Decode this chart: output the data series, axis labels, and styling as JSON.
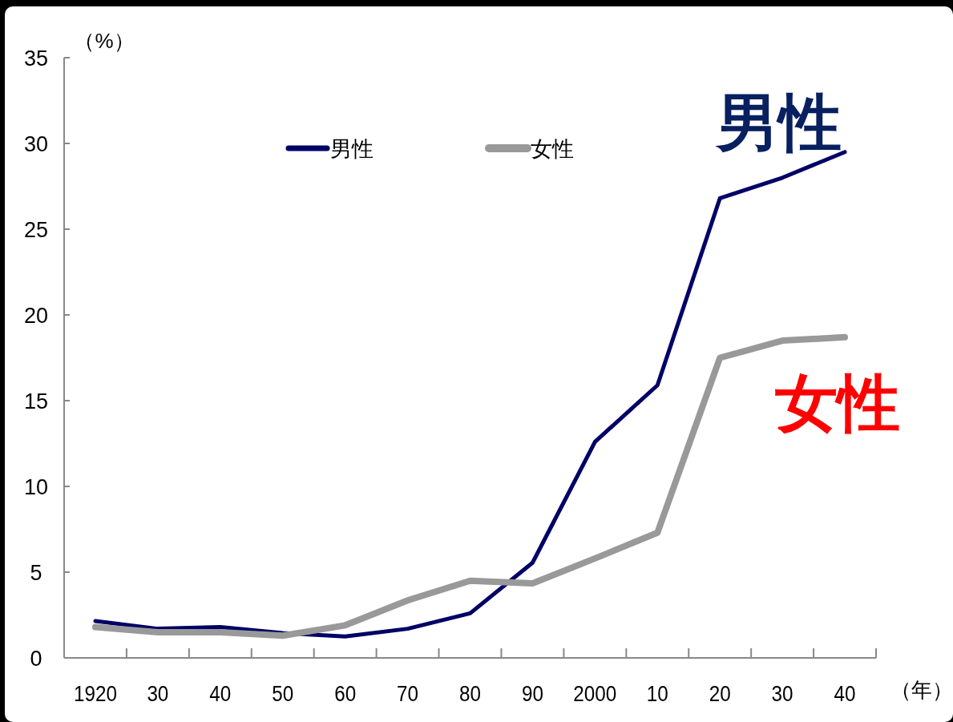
{
  "chart_data": {
    "type": "line",
    "ylabel": "（%）",
    "xlabel": "（年）",
    "categories": [
      "1920",
      "30",
      "40",
      "50",
      "60",
      "70",
      "80",
      "90",
      "2000",
      "10",
      "20",
      "30",
      "40"
    ],
    "ylim": [
      0,
      35
    ],
    "yticks": [
      0,
      5,
      10,
      15,
      20,
      25,
      30,
      35
    ],
    "grid": false,
    "legend": "top",
    "marker": "none",
    "line_style": "solid",
    "series": [
      {
        "name": "男性",
        "color": "#000066",
        "values": [
          2.15,
          1.7,
          1.8,
          1.45,
          1.25,
          1.7,
          2.6,
          5.55,
          12.6,
          15.9,
          26.8,
          28.0,
          29.5
        ]
      },
      {
        "name": "女性",
        "color": "#999999",
        "values": [
          1.8,
          1.5,
          1.5,
          1.3,
          1.9,
          3.35,
          4.5,
          4.35,
          5.8,
          7.3,
          17.5,
          18.5,
          18.7
        ]
      }
    ],
    "annotations": [
      "男性",
      "女性"
    ]
  }
}
